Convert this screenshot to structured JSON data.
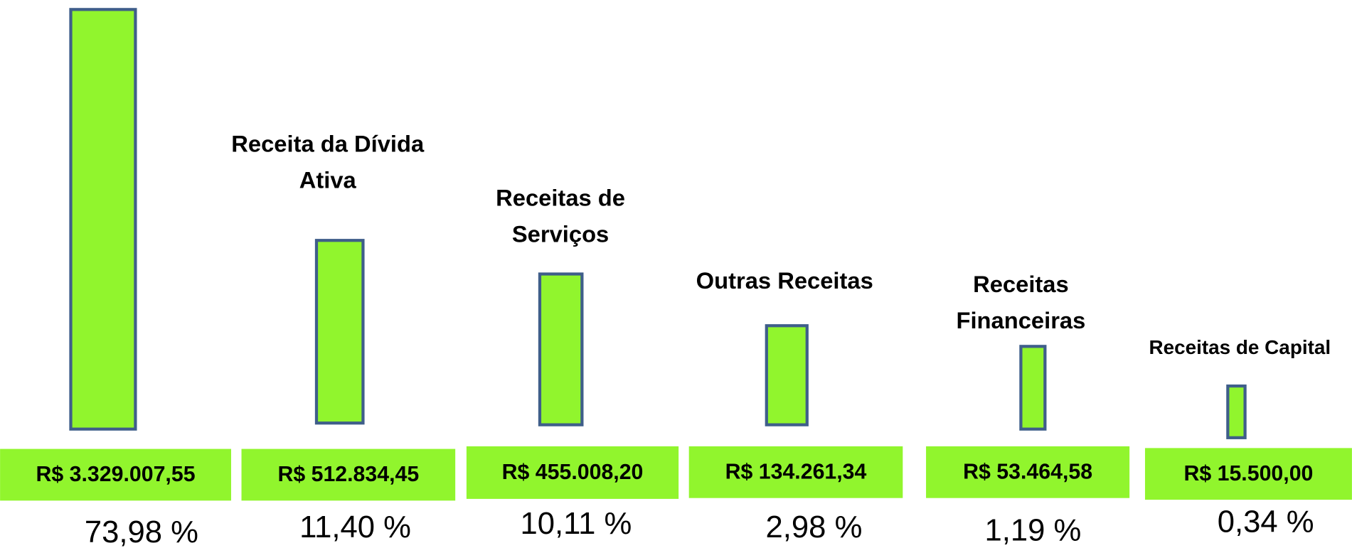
{
  "items": [
    {
      "label": [],
      "amount": "R$ 3.329.007,55",
      "percent": "73,98 %"
    },
    {
      "label": [
        "Receita da Dívida",
        "Ativa"
      ],
      "amount": "R$ 512.834,45",
      "percent": "11,40 %"
    },
    {
      "label": [
        "Receitas de",
        "Serviços"
      ],
      "amount": "R$ 455.008,20",
      "percent": "10,11 %"
    },
    {
      "label": [
        "Outras Receitas"
      ],
      "amount": "R$ 134.261,34",
      "percent": "2,98 %"
    },
    {
      "label": [
        "Receitas",
        "Financeiras"
      ],
      "amount": "R$ 53.464,58",
      "percent": "1,19 %"
    },
    {
      "label": [
        "Receitas de Capital"
      ],
      "amount": "R$ 15.500,00",
      "percent": "0,34 %"
    }
  ]
}
